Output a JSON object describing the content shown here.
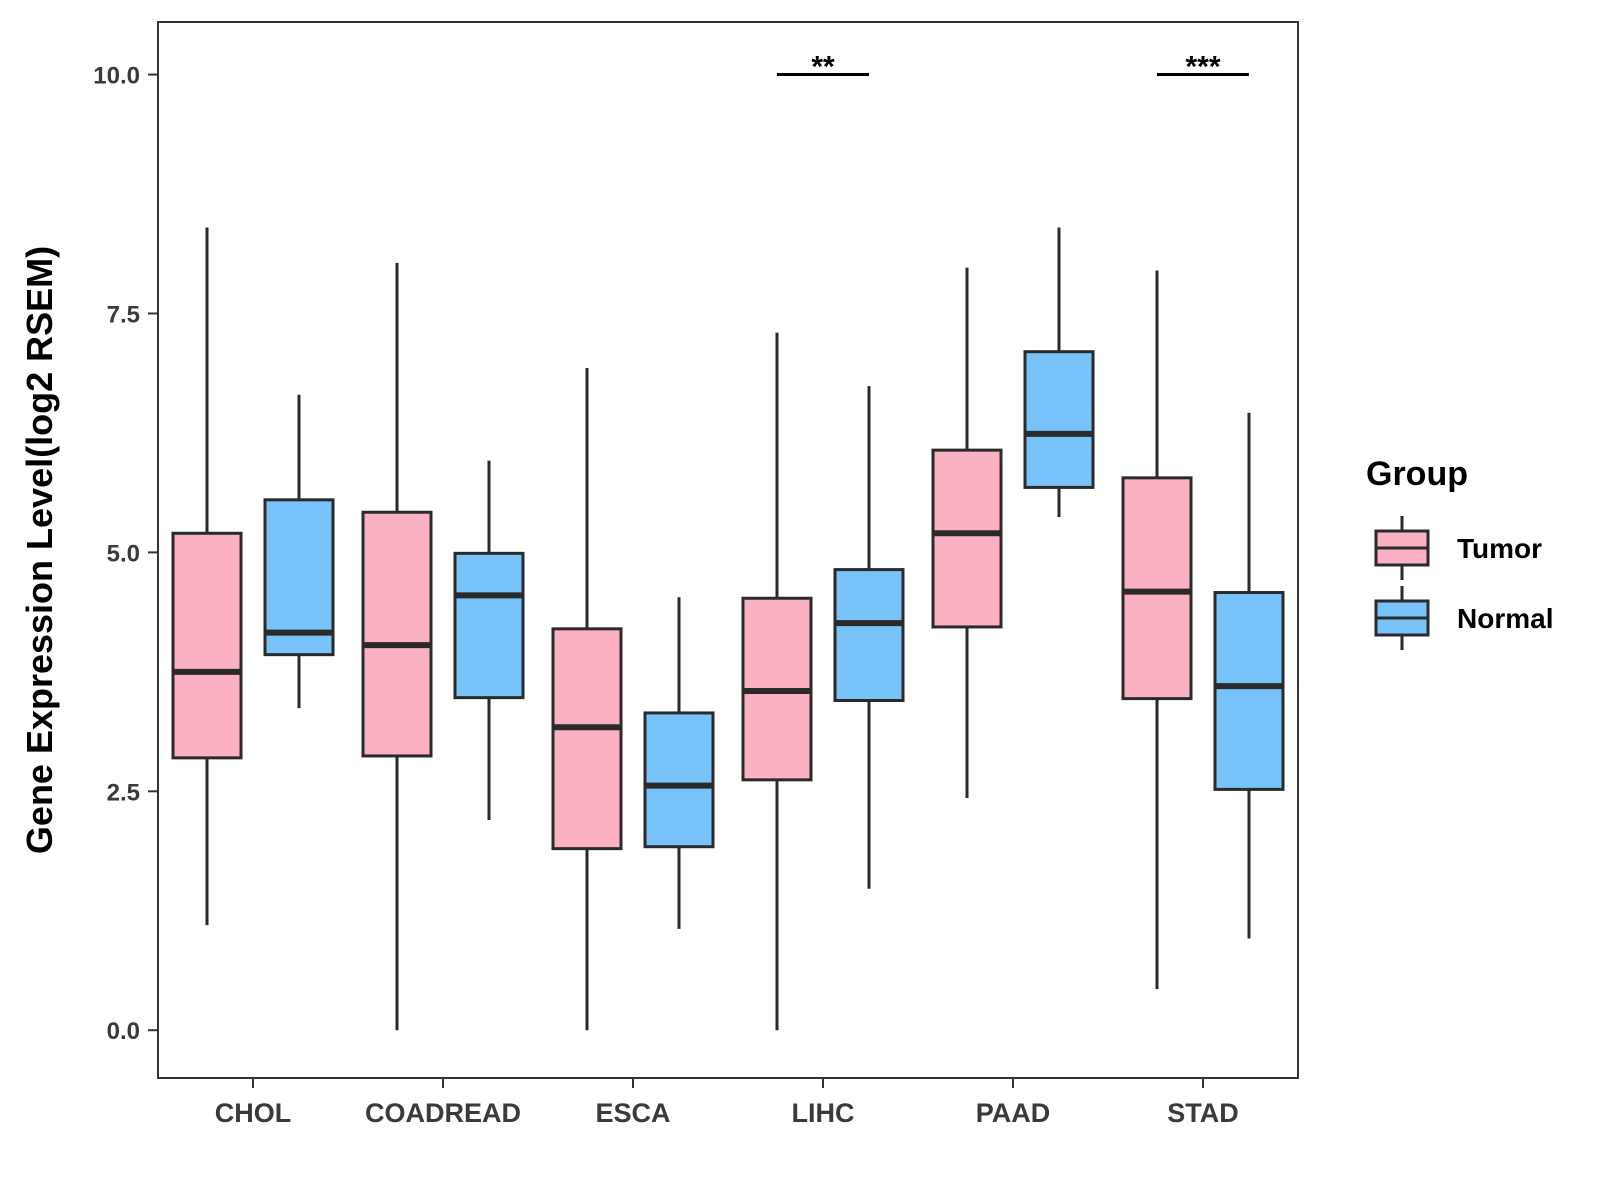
{
  "chart_data": {
    "type": "boxplot",
    "ylabel": "Gene Expression Level(log2 RSEM)",
    "xlabel": "",
    "ylim": [
      -0.5,
      10.55
    ],
    "yticks": [
      0.0,
      2.5,
      5.0,
      7.5,
      10.0
    ],
    "ytick_labels": [
      "0.0",
      "2.5",
      "5.0",
      "7.5",
      "10.0"
    ],
    "grid": false,
    "categories": [
      "CHOL",
      "COADREAD",
      "ESCA",
      "LIHC",
      "PAAD",
      "STAD"
    ],
    "legend": {
      "title": "Group",
      "position": "right",
      "entries": [
        {
          "name": "Tumor",
          "color": "#fbb1c2"
        },
        {
          "name": "Normal",
          "color": "#77c2f8"
        }
      ]
    },
    "series": [
      {
        "name": "Tumor",
        "color": "#fbb1c2",
        "boxes": [
          {
            "category": "CHOL",
            "min": 1.1,
            "q1": 2.85,
            "median": 3.75,
            "q3": 5.2,
            "max": 8.4
          },
          {
            "category": "COADREAD",
            "min": 0.0,
            "q1": 2.87,
            "median": 4.03,
            "q3": 5.42,
            "max": 8.03
          },
          {
            "category": "ESCA",
            "min": 0.0,
            "q1": 1.9,
            "median": 3.17,
            "q3": 4.2,
            "max": 6.93
          },
          {
            "category": "LIHC",
            "min": 0.0,
            "q1": 2.62,
            "median": 3.55,
            "q3": 4.52,
            "max": 7.3
          },
          {
            "category": "PAAD",
            "min": 2.43,
            "q1": 4.22,
            "median": 5.2,
            "q3": 6.07,
            "max": 7.98
          },
          {
            "category": "STAD",
            "min": 0.43,
            "q1": 3.47,
            "median": 4.59,
            "q3": 5.78,
            "max": 7.95
          }
        ]
      },
      {
        "name": "Normal",
        "color": "#77c2f8",
        "boxes": [
          {
            "category": "CHOL",
            "min": 3.37,
            "q1": 3.93,
            "median": 4.16,
            "q3": 5.55,
            "max": 6.65
          },
          {
            "category": "COADREAD",
            "min": 2.2,
            "q1": 3.48,
            "median": 4.55,
            "q3": 4.99,
            "max": 5.96
          },
          {
            "category": "ESCA",
            "min": 1.06,
            "q1": 1.92,
            "median": 2.56,
            "q3": 3.32,
            "max": 4.53
          },
          {
            "category": "LIHC",
            "min": 1.48,
            "q1": 3.45,
            "median": 4.26,
            "q3": 4.82,
            "max": 6.74
          },
          {
            "category": "PAAD",
            "min": 5.37,
            "q1": 5.68,
            "median": 6.24,
            "q3": 7.1,
            "max": 8.4
          },
          {
            "category": "STAD",
            "min": 0.96,
            "q1": 2.52,
            "median": 3.6,
            "q3": 4.58,
            "max": 6.46
          }
        ]
      }
    ],
    "annotations": [
      {
        "category": "LIHC",
        "label": "**",
        "y": 10.0
      },
      {
        "category": "STAD",
        "label": "***",
        "y": 10.0
      }
    ]
  }
}
